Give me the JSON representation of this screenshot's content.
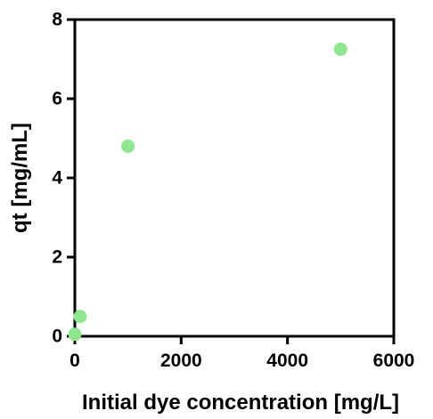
{
  "chart_data": {
    "type": "scatter",
    "title": "",
    "xlabel": "Initial dye concentration [mg/L]",
    "ylabel": "qt [mg/mL]",
    "xlim": [
      0,
      6000
    ],
    "ylim": [
      0,
      8
    ],
    "xticks": [
      0,
      2000,
      4000,
      6000
    ],
    "yticks": [
      0,
      2,
      4,
      6,
      8
    ],
    "xtick_labels": [
      "0",
      "2000",
      "4000",
      "6000"
    ],
    "ytick_labels": [
      "0",
      "2",
      "4",
      "6",
      "8"
    ],
    "grid": false,
    "legend": "none",
    "marker_color": "#8ee68e",
    "series": [
      {
        "x": [
          0,
          100,
          1000,
          5000
        ],
        "y": [
          0.05,
          0.5,
          4.8,
          7.25
        ]
      }
    ]
  }
}
